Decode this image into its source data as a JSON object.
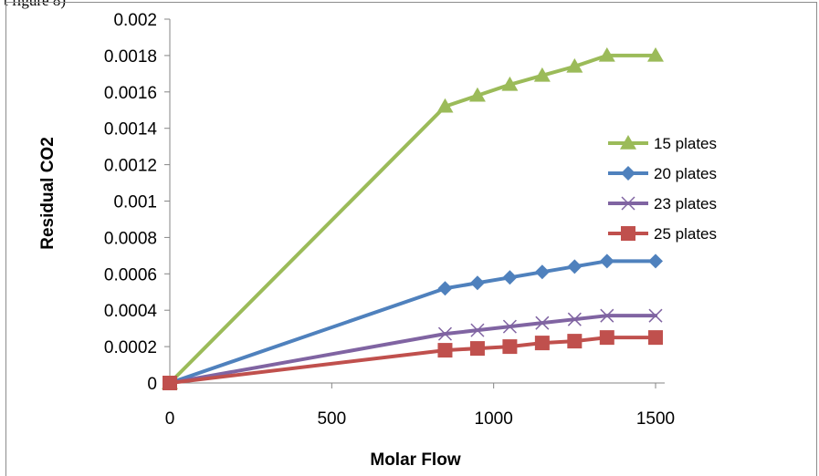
{
  "page": {
    "top_fragment": "t figure 8)"
  },
  "chart_data": {
    "type": "line",
    "title": "",
    "xlabel": "Molar Flow",
    "ylabel": "Residual CO2",
    "xlim": [
      0,
      1500
    ],
    "ylim": [
      0,
      0.002
    ],
    "x_ticks": [
      "0",
      "500",
      "1000",
      "1500"
    ],
    "y_ticks": [
      "0",
      "0.0002",
      "0.0004",
      "0.0006",
      "0.0008",
      "0.001",
      "0.0012",
      "0.0014",
      "0.0016",
      "0.0018",
      "0.002"
    ],
    "grid": false,
    "legend_position": "right",
    "series": [
      {
        "name": "15 plates",
        "color": "#9bbb59",
        "marker": "triangle",
        "points": [
          [
            0,
            0
          ],
          [
            850,
            0.00152
          ],
          [
            950,
            0.00158
          ],
          [
            1050,
            0.00164
          ],
          [
            1150,
            0.00169
          ],
          [
            1250,
            0.00174
          ],
          [
            1350,
            0.0018
          ],
          [
            1500,
            0.0018
          ]
        ]
      },
      {
        "name": "20 plates",
        "color": "#4f81bd",
        "marker": "diamond",
        "points": [
          [
            0,
            0
          ],
          [
            850,
            0.00052
          ],
          [
            950,
            0.00055
          ],
          [
            1050,
            0.00058
          ],
          [
            1150,
            0.00061
          ],
          [
            1250,
            0.00064
          ],
          [
            1350,
            0.00067
          ],
          [
            1500,
            0.00067
          ]
        ]
      },
      {
        "name": "23 plates",
        "color": "#8064a2",
        "marker": "x",
        "points": [
          [
            0,
            0
          ],
          [
            850,
            0.00027
          ],
          [
            950,
            0.00029
          ],
          [
            1050,
            0.00031
          ],
          [
            1150,
            0.00033
          ],
          [
            1250,
            0.00035
          ],
          [
            1350,
            0.00037
          ],
          [
            1500,
            0.00037
          ]
        ]
      },
      {
        "name": "25 plates",
        "color": "#c0504d",
        "marker": "square",
        "points": [
          [
            0,
            0
          ],
          [
            850,
            0.00018
          ],
          [
            950,
            0.00019
          ],
          [
            1050,
            0.0002
          ],
          [
            1150,
            0.00022
          ],
          [
            1250,
            0.00023
          ],
          [
            1350,
            0.00025
          ],
          [
            1500,
            0.00025
          ]
        ]
      }
    ]
  }
}
